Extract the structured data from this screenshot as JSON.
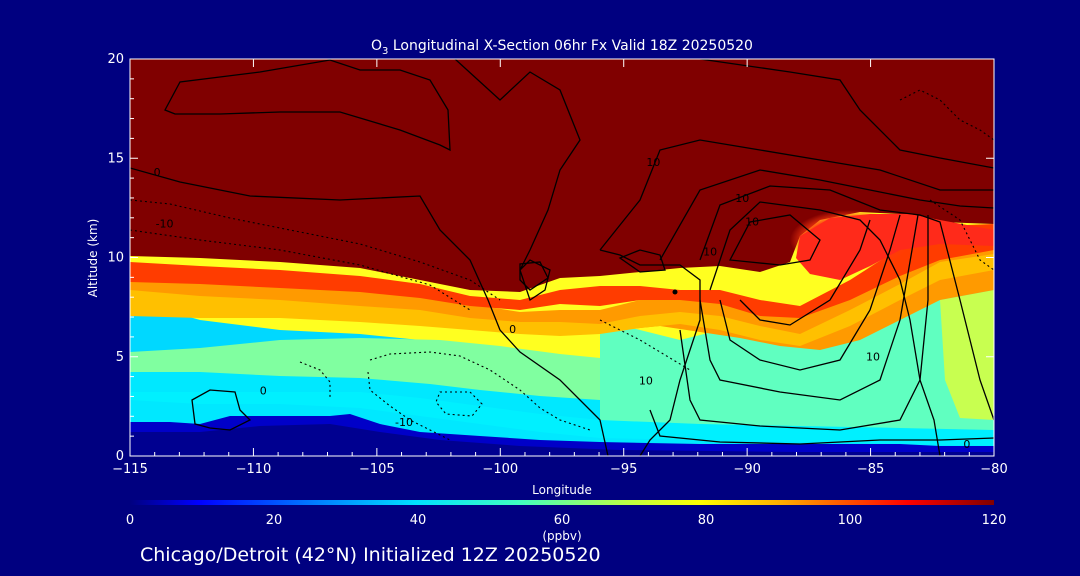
{
  "chart_data": {
    "type": "heatmap",
    "title_main": "O",
    "title_sub": "3",
    "title_rest": " Longitudinal X-Section 06hr  Fx Valid 18Z 20250520",
    "xlabel": "Longitude",
    "ylabel": "Altitude (km)",
    "xlim": [
      -115,
      -80
    ],
    "ylim": [
      0,
      20
    ],
    "x_ticks": [
      -115,
      -110,
      -105,
      -100,
      -95,
      -90,
      -85,
      -80
    ],
    "x_tick_labels": [
      "−115",
      "−110",
      "−105",
      "−100",
      "−95",
      "−90",
      "−85",
      "−80"
    ],
    "y_ticks": [
      0,
      5,
      10,
      15,
      20
    ],
    "y_tick_labels": [
      "0",
      "5",
      "10",
      "15",
      "20"
    ],
    "colorbar": {
      "label": "(ppbv)",
      "range": [
        0,
        120
      ],
      "ticks": [
        0,
        20,
        40,
        60,
        80,
        100,
        120
      ],
      "tick_labels": [
        "0",
        "20",
        "40",
        "60",
        "80",
        "100",
        "120"
      ],
      "colors": [
        "#000080",
        "#0000ff",
        "#0070ff",
        "#00e0ff",
        "#40ffc0",
        "#c0ff40",
        "#ffff00",
        "#ffb000",
        "#ff5000",
        "#ff0000",
        "#800000"
      ]
    },
    "contour_labels": [
      {
        "text": "0",
        "lon": -113.9,
        "alt": 14.1
      },
      {
        "text": "-10",
        "lon": -113.6,
        "alt": 11.5
      },
      {
        "text": "0",
        "lon": -109.6,
        "alt": 3.1
      },
      {
        "text": "-10",
        "lon": -103.9,
        "alt": 1.5
      },
      {
        "text": "0",
        "lon": -99.5,
        "alt": 6.2
      },
      {
        "text": "10",
        "lon": -93.8,
        "alt": 14.6
      },
      {
        "text": "10",
        "lon": -91.5,
        "alt": 10.1
      },
      {
        "text": "10",
        "lon": -90.2,
        "alt": 12.8
      },
      {
        "text": "10",
        "lon": -89.8,
        "alt": 11.6
      },
      {
        "text": "10",
        "lon": -94.1,
        "alt": 3.6
      },
      {
        "text": "10",
        "lon": -84.9,
        "alt": 4.8
      },
      {
        "text": "0",
        "lon": -81.1,
        "alt": 0.4
      }
    ]
  },
  "footer": "Chicago/Detroit (42°N) Initialized 12Z 20250520",
  "colors": {
    "background": "#000080",
    "text": "#ffffff",
    "contour": "#000000"
  }
}
